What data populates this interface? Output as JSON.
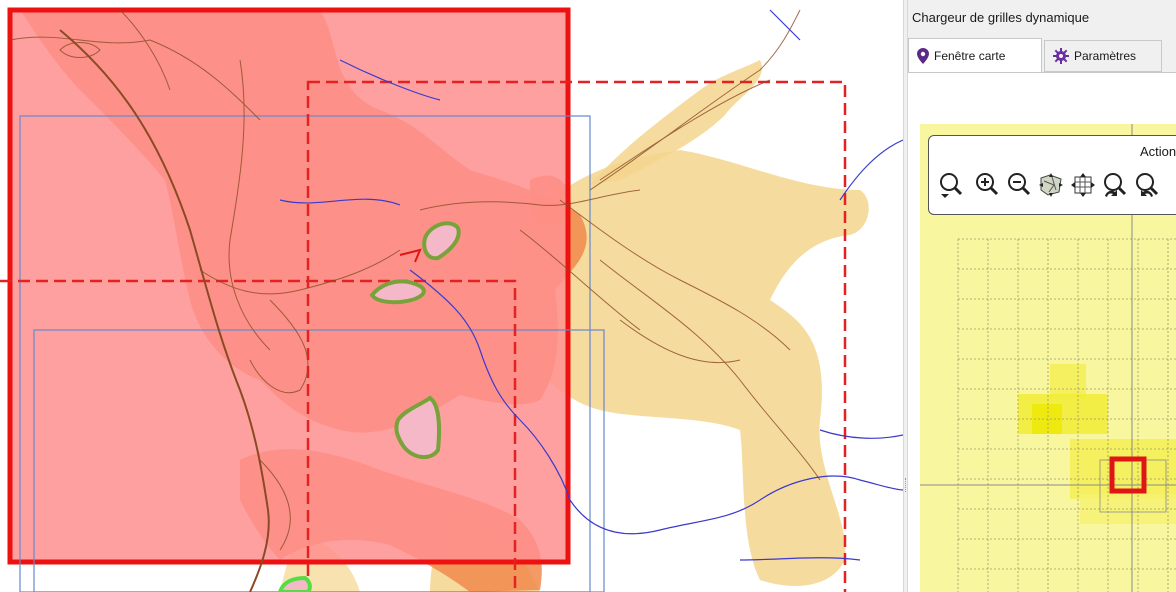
{
  "panel": {
    "title": "Chargeur de grilles dynamique",
    "tabs": [
      {
        "label": "Fenêtre carte",
        "icon": "map-pin-icon",
        "active": true
      },
      {
        "label": "Paramètres",
        "icon": "gear-icon",
        "active": false
      }
    ],
    "actions": {
      "label": "Actions",
      "buttons": [
        "zoom-select-icon",
        "zoom-in-icon",
        "zoom-out-icon",
        "zoom-layer-icon",
        "zoom-extent-icon",
        "zoom-previous-icon",
        "zoom-next-icon"
      ]
    }
  },
  "colors": {
    "selected_fill": "#ff8f8f",
    "selected_stroke": "#ee1111",
    "grid_dashed": "#e52222",
    "grid_outline": "#6688cc",
    "zone_orange": "#f08a4b",
    "zone_light": "#f5d58e",
    "contour": "#8a4a24",
    "river": "#3a3acc",
    "green_patch": "#7aa23a",
    "mini_background": "#f9f6a0",
    "mini_highlight": "#eeea10",
    "mini_selection": "#e01515"
  }
}
